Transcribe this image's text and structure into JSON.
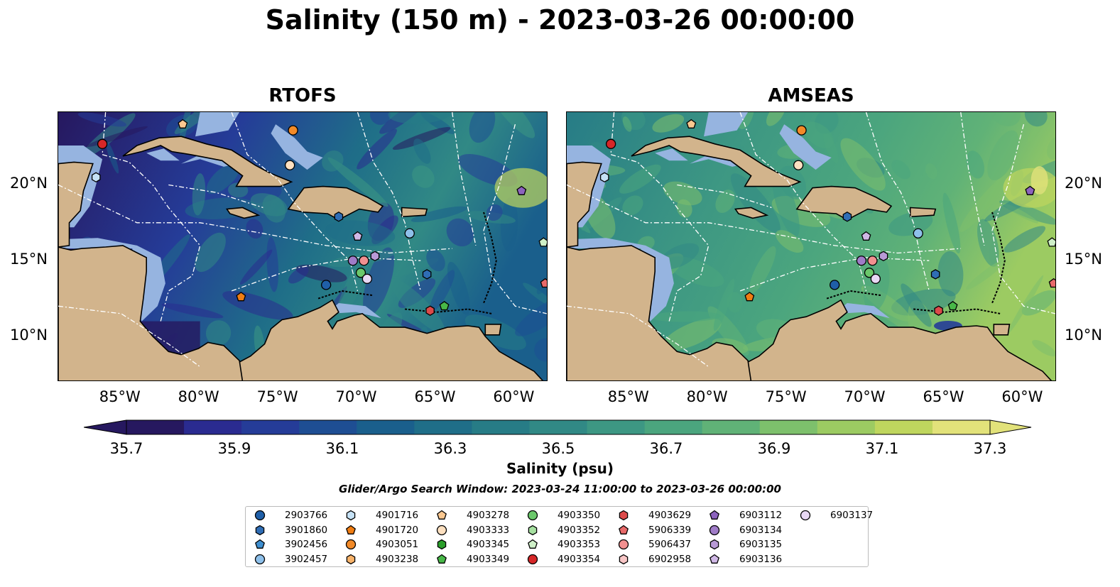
{
  "title": "Salinity (150 m) - 2023-03-26 00:00:00",
  "panels": [
    {
      "title": "RTOFS",
      "palette": "low"
    },
    {
      "title": "AMSEAS",
      "palette": "high"
    }
  ],
  "axes": {
    "lon_ticks": [
      "85°W",
      "80°W",
      "75°W",
      "70°W",
      "65°W",
      "60°W"
    ],
    "lat_ticks": [
      "20°N",
      "15°N",
      "10°N"
    ]
  },
  "colorbar": {
    "label": "Salinity (psu)",
    "ticks": [
      "35.7",
      "35.9",
      "36.1",
      "36.3",
      "36.5",
      "36.7",
      "36.9",
      "37.1",
      "37.3"
    ],
    "min": 35.7,
    "max": 37.3,
    "extend": "both",
    "colors": [
      "#26185f",
      "#2a2b90",
      "#253c98",
      "#1e4e93",
      "#1a5f8c",
      "#1f6e88",
      "#277c86",
      "#318985",
      "#3d9783",
      "#4ba57e",
      "#60b277",
      "#7dc06c",
      "#9ccb62",
      "#bfd65e",
      "#e2e27a"
    ]
  },
  "search_window": "Glider/Argo Search Window: 2023-03-24 11:00:00 to 2023-03-26 00:00:00",
  "legend": [
    {
      "id": "2903766",
      "marker": "circle",
      "color": "#1f5fa8"
    },
    {
      "id": "3901860",
      "marker": "hexagon",
      "color": "#2f6db5"
    },
    {
      "id": "3902456",
      "marker": "pentagon",
      "color": "#3f8fd0"
    },
    {
      "id": "3902457",
      "marker": "circle",
      "color": "#8ec0ea"
    },
    {
      "id": "4901716",
      "marker": "hexagon",
      "color": "#c6e2f6"
    },
    {
      "id": "4901720",
      "marker": "pentagon",
      "color": "#f07d12"
    },
    {
      "id": "4903051",
      "marker": "circle",
      "color": "#f28a28"
    },
    {
      "id": "4903238",
      "marker": "hexagon",
      "color": "#f8b36a"
    },
    {
      "id": "4903278",
      "marker": "pentagon",
      "color": "#fbc890"
    },
    {
      "id": "4903333",
      "marker": "circle",
      "color": "#fde0c0"
    },
    {
      "id": "4903345",
      "marker": "hexagon",
      "color": "#2a9e2a"
    },
    {
      "id": "4903349",
      "marker": "pentagon",
      "color": "#48b848"
    },
    {
      "id": "4903350",
      "marker": "circle",
      "color": "#6bc86b"
    },
    {
      "id": "4903352",
      "marker": "hexagon",
      "color": "#a6e0a0"
    },
    {
      "id": "4903353",
      "marker": "pentagon",
      "color": "#cff0c8"
    },
    {
      "id": "4903354",
      "marker": "circle",
      "color": "#d62728"
    },
    {
      "id": "4903629",
      "marker": "hexagon",
      "color": "#dc4a4a"
    },
    {
      "id": "5906339",
      "marker": "pentagon",
      "color": "#e86a6a"
    },
    {
      "id": "5906437",
      "marker": "circle",
      "color": "#f29090"
    },
    {
      "id": "6902958",
      "marker": "hexagon",
      "color": "#f8c6c6"
    },
    {
      "id": "6903112",
      "marker": "pentagon",
      "color": "#8c63bd"
    },
    {
      "id": "6903134",
      "marker": "circle",
      "color": "#a07cc8"
    },
    {
      "id": "6903135",
      "marker": "hexagon",
      "color": "#b89ad6"
    },
    {
      "id": "6903136",
      "marker": "pentagon",
      "color": "#d0b8e6"
    },
    {
      "id": "6903137",
      "marker": "circle",
      "color": "#e8d8f4"
    }
  ],
  "floats_on_map": [
    {
      "id": "4903354",
      "lon": -86.2,
      "lat": 22.7
    },
    {
      "id": "4901716",
      "lon": -86.6,
      "lat": 20.5
    },
    {
      "id": "4903051",
      "lon": -74.1,
      "lat": 23.6
    },
    {
      "id": "4903333",
      "lon": -74.3,
      "lat": 21.3
    },
    {
      "id": "3901860",
      "lon": -71.2,
      "lat": 17.9
    },
    {
      "id": "6903136",
      "lon": -70.0,
      "lat": 16.6
    },
    {
      "id": "3902457",
      "lon": -66.7,
      "lat": 16.8
    },
    {
      "id": "6903134",
      "lon": -70.3,
      "lat": 15.0
    },
    {
      "id": "5906437",
      "lon": -69.6,
      "lat": 15.0
    },
    {
      "id": "6903135",
      "lon": -68.9,
      "lat": 15.3
    },
    {
      "id": "4903350",
      "lon": -69.8,
      "lat": 14.2
    },
    {
      "id": "6903137",
      "lon": -69.4,
      "lat": 13.8
    },
    {
      "id": "2903766",
      "lon": -72.0,
      "lat": 13.4
    },
    {
      "id": "3901860",
      "lon": -65.6,
      "lat": 14.1
    },
    {
      "id": "4901720",
      "lon": -77.4,
      "lat": 12.6
    },
    {
      "id": "4903629",
      "lon": -65.4,
      "lat": 11.7
    },
    {
      "id": "4903349",
      "lon": -64.5,
      "lat": 12.0
    },
    {
      "id": "6903112",
      "lon": -59.6,
      "lat": 19.6
    },
    {
      "id": "4903353",
      "lon": -58.2,
      "lat": 16.2
    },
    {
      "id": "5906339",
      "lon": -58.1,
      "lat": 13.5
    },
    {
      "id": "4903278",
      "lon": -81.1,
      "lat": 24.0
    }
  ]
}
